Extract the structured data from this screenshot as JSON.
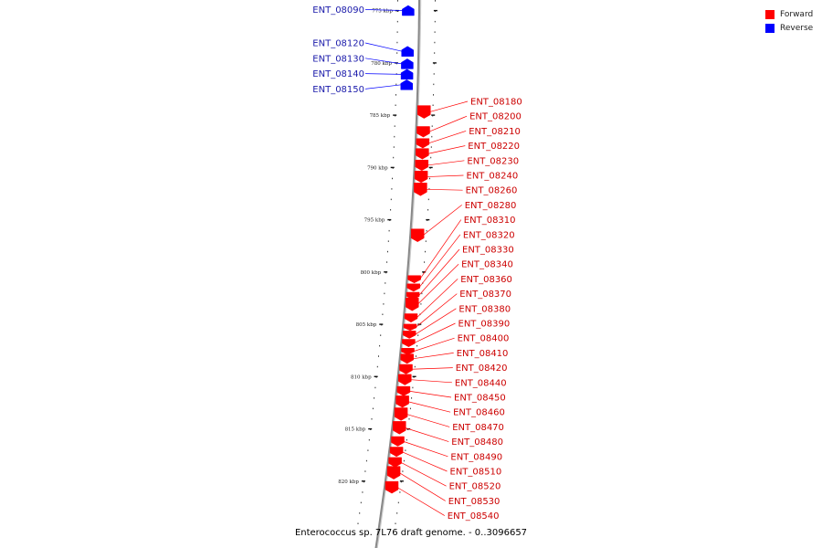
{
  "legend": {
    "items": [
      {
        "label": "Forward",
        "color": "#ff0000"
      },
      {
        "label": "Reverse",
        "color": "#0000ff"
      }
    ]
  },
  "title": "Enterococcus sp. 7L76 draft genome. - 0..3096657",
  "colors": {
    "forward": "#ff0000",
    "reverse": "#0000ff",
    "backbone": "#888888",
    "label_forward": "#cc0000",
    "label_reverse": "#1a1aaa"
  },
  "ruler": {
    "ticks": [
      {
        "label": "775 kbp",
        "kbp": 775
      },
      {
        "label": "780 kbp",
        "kbp": 780
      },
      {
        "label": "785 kbp",
        "kbp": 785
      },
      {
        "label": "790 kbp",
        "kbp": 790
      },
      {
        "label": "795 kbp",
        "kbp": 795
      },
      {
        "label": "800 kbp",
        "kbp": 800
      },
      {
        "label": "805 kbp",
        "kbp": 805
      },
      {
        "label": "810 kbp",
        "kbp": 810
      },
      {
        "label": "815 kbp",
        "kbp": 815
      },
      {
        "label": "820 kbp",
        "kbp": 820
      }
    ]
  },
  "genes": {
    "reverse": [
      {
        "label": "ENT_08090",
        "kbp": 775.0
      },
      {
        "label": "ENT_08120",
        "kbp": 778.9
      },
      {
        "label": "ENT_08130",
        "kbp": 780.1
      },
      {
        "label": "ENT_08140",
        "kbp": 781.1
      },
      {
        "label": "ENT_08150",
        "kbp": 782.1
      }
    ],
    "forward": [
      {
        "label": "ENT_08180",
        "kbp": 784.7
      },
      {
        "label": "ENT_08200",
        "kbp": 786.6
      },
      {
        "label": "ENT_08210",
        "kbp": 787.7
      },
      {
        "label": "ENT_08220",
        "kbp": 788.7
      },
      {
        "label": "ENT_08230",
        "kbp": 789.8
      },
      {
        "label": "ENT_08240",
        "kbp": 790.9
      },
      {
        "label": "ENT_08260",
        "kbp": 792.1
      },
      {
        "label": "ENT_08280",
        "kbp": 796.5
      },
      {
        "label": "ENT_08310",
        "kbp": 800.7
      },
      {
        "label": "ENT_08320",
        "kbp": 801.5
      },
      {
        "label": "ENT_08330",
        "kbp": 802.3
      },
      {
        "label": "ENT_08340",
        "kbp": 803.1
      },
      {
        "label": "ENT_08360",
        "kbp": 804.4
      },
      {
        "label": "ENT_08370",
        "kbp": 805.3
      },
      {
        "label": "ENT_08380",
        "kbp": 806.0
      },
      {
        "label": "ENT_08390",
        "kbp": 806.8
      },
      {
        "label": "ENT_08400",
        "kbp": 807.6
      },
      {
        "label": "ENT_08410",
        "kbp": 808.3
      },
      {
        "label": "ENT_08420",
        "kbp": 809.3
      },
      {
        "label": "ENT_08440",
        "kbp": 810.3
      },
      {
        "label": "ENT_08450",
        "kbp": 811.4
      },
      {
        "label": "ENT_08460",
        "kbp": 812.4
      },
      {
        "label": "ENT_08470",
        "kbp": 813.6
      },
      {
        "label": "ENT_08480",
        "kbp": 814.9
      },
      {
        "label": "ENT_08490",
        "kbp": 816.2
      },
      {
        "label": "ENT_08510",
        "kbp": 817.2
      },
      {
        "label": "ENT_08520",
        "kbp": 818.2
      },
      {
        "label": "ENT_08530",
        "kbp": 819.2
      },
      {
        "label": "ENT_08540",
        "kbp": 820.6
      }
    ]
  }
}
